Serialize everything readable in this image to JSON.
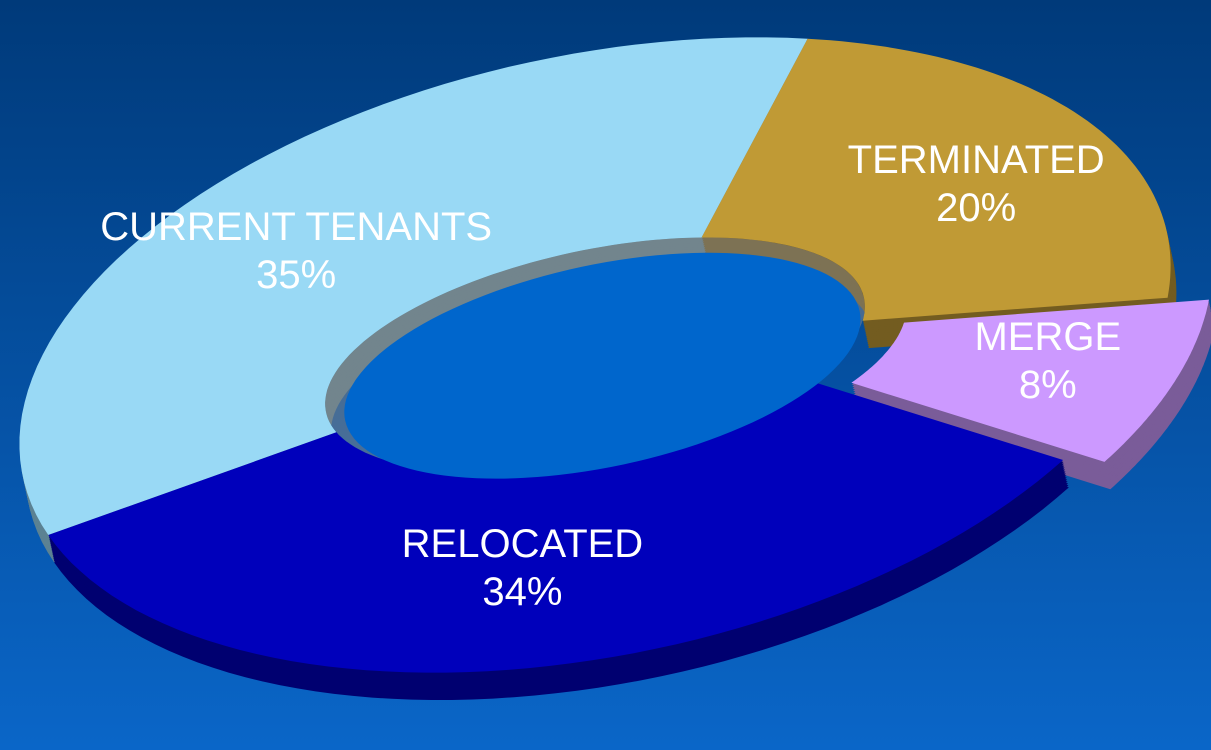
{
  "chart_data": {
    "type": "pie",
    "donut": true,
    "categories": [
      "CURRENT TENANTS",
      "TERMINATED",
      "MERGE",
      "RELOCATED"
    ],
    "values": [
      35,
      20,
      8,
      34
    ],
    "value_labels": [
      "35%",
      "20%",
      "8%",
      "34%"
    ],
    "colors": [
      "#99d9f5",
      "#c09a35",
      "#cc99ff",
      "#0000bb"
    ],
    "exploded": [
      false,
      false,
      true,
      false
    ]
  }
}
